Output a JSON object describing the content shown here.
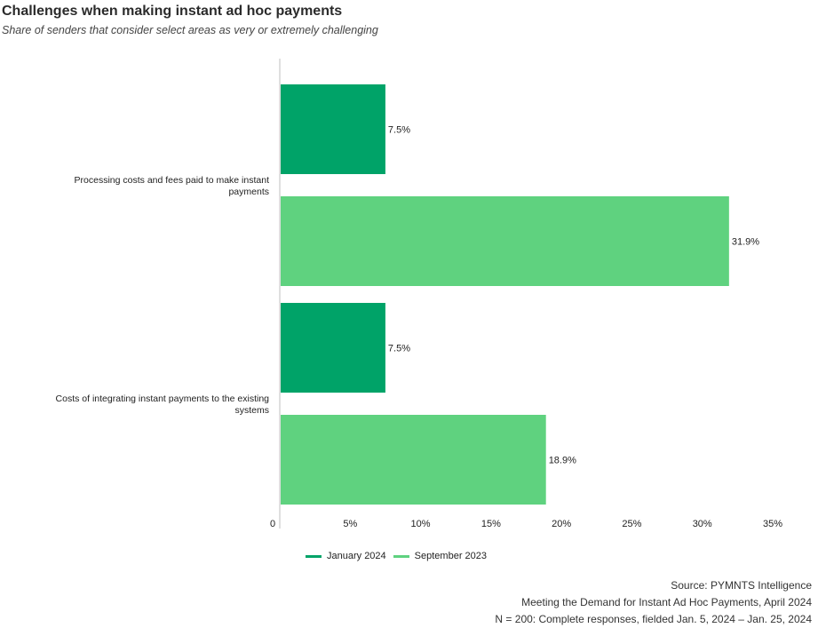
{
  "title": "Challenges when making instant ad hoc payments",
  "subtitle": "Share of senders that consider select areas as very or extremely challenging",
  "colors": {
    "january_2024": "#00a368",
    "september_2023": "#5fd27f",
    "axis": "#bfbfbf",
    "text": "#222222"
  },
  "chart_data": {
    "type": "bar",
    "orientation": "horizontal",
    "categories": [
      [
        "Processing costs and fees paid to make instant",
        "payments"
      ],
      [
        "Costs of integrating instant payments to the existing",
        "systems"
      ]
    ],
    "series": [
      {
        "name": "January 2024",
        "values": [
          7.5,
          7.5
        ],
        "labels": [
          "7.5%",
          "7.5%"
        ]
      },
      {
        "name": "September 2023",
        "values": [
          31.9,
          18.9
        ],
        "labels": [
          "31.9%",
          "18.9%"
        ]
      }
    ],
    "xlim": [
      0,
      35
    ],
    "xticks": [
      0,
      5,
      10,
      15,
      20,
      25,
      30,
      35
    ],
    "xtick_labels": [
      "0",
      "5%",
      "10%",
      "15%",
      "20%",
      "25%",
      "30%",
      "35%"
    ],
    "legend_position": "bottom",
    "grid": false
  },
  "legend": {
    "items": [
      {
        "label": "January 2024",
        "color": "#00a368"
      },
      {
        "label": "September 2023",
        "color": "#5fd27f"
      }
    ]
  },
  "source": {
    "line1": "Source: PYMNTS Intelligence",
    "line2": "Meeting the Demand for Instant Ad Hoc Payments, April 2024",
    "line3": "N = 200: Complete responses, fielded Jan. 5, 2024 – Jan. 25, 2024"
  }
}
